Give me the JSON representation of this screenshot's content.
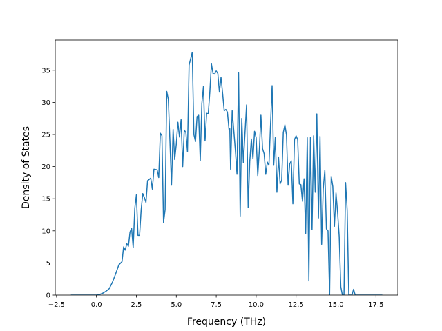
{
  "chart_data": {
    "type": "line",
    "xlabel": "Frequency (THz)",
    "ylabel": "Density of States",
    "xlim": [
      -2.58,
      18.87
    ],
    "ylim": [
      0,
      39.7
    ],
    "xticks": [
      {
        "value": -2.5,
        "label": "−2.5"
      },
      {
        "value": 0,
        "label": "0.0"
      },
      2.5,
      {
        "value": 5,
        "label": "5.0"
      },
      7.5,
      {
        "value": 10,
        "label": "10.0"
      },
      12.5,
      {
        "value": 15,
        "label": "15.0"
      },
      17.5
    ],
    "yticks": [
      0,
      5,
      10,
      15,
      20,
      25,
      30,
      35
    ],
    "grid": false,
    "series": [
      {
        "color": "#1f77b4",
        "x": [
          -1.6,
          0,
          0.2,
          0.4,
          0.6,
          0.8,
          1.0,
          1.2,
          1.4,
          1.6,
          1.7,
          1.8,
          1.9,
          2.0,
          2.1,
          2.2,
          2.3,
          2.4,
          2.5,
          2.6,
          2.7,
          2.8,
          2.9,
          3.0,
          3.1,
          3.2,
          3.4,
          3.5,
          3.6,
          3.8,
          3.9,
          4.0,
          4.1,
          4.2,
          4.3,
          4.4,
          4.5,
          4.6,
          4.7,
          4.8,
          4.9,
          5.0,
          5.1,
          5.2,
          5.3,
          5.4,
          5.5,
          5.6,
          5.7,
          5.8,
          6.0,
          6.1,
          6.2,
          6.3,
          6.4,
          6.5,
          6.6,
          6.7,
          6.8,
          6.9,
          7.0,
          7.1,
          7.2,
          7.3,
          7.4,
          7.5,
          7.6,
          7.7,
          7.8,
          7.9,
          8.0,
          8.1,
          8.2,
          8.3,
          8.35,
          8.4,
          8.5,
          8.6,
          8.7,
          8.8,
          8.9,
          9.0,
          9.1,
          9.2,
          9.3,
          9.4,
          9.5,
          9.6,
          9.7,
          9.8,
          9.9,
          10.0,
          10.1,
          10.2,
          10.3,
          10.4,
          10.5,
          10.6,
          10.7,
          10.8,
          10.9,
          11.0,
          11.1,
          11.2,
          11.3,
          11.4,
          11.5,
          11.6,
          11.7,
          11.8,
          11.9,
          12.0,
          12.1,
          12.2,
          12.3,
          12.4,
          12.5,
          12.6,
          12.7,
          12.8,
          12.9,
          13.0,
          13.1,
          13.2,
          13.3,
          13.4,
          13.5,
          13.6,
          13.7,
          13.8,
          13.9,
          14.0,
          14.1,
          14.2,
          14.3,
          14.4,
          14.5,
          14.6,
          14.7,
          14.8,
          14.9,
          15.0,
          15.1,
          15.2,
          15.3,
          15.4,
          15.5,
          15.6,
          15.7,
          15.8,
          16.0,
          16.1,
          16.2,
          17.9
        ],
        "values": [
          0,
          0,
          0.1,
          0.3,
          0.6,
          1.0,
          2.0,
          3.3,
          4.7,
          5.2,
          7.5,
          7.0,
          8.0,
          7.6,
          9.8,
          10.4,
          7.4,
          13.5,
          15.6,
          9.3,
          9.3,
          13.3,
          15.8,
          15.2,
          14.4,
          17.8,
          18.2,
          16.5,
          19.6,
          19.5,
          18.3,
          25.2,
          24.8,
          11.3,
          13.3,
          31.7,
          30.5,
          24,
          17.1,
          25.8,
          21.1,
          23.5,
          26.9,
          24.6,
          27.3,
          20,
          25.7,
          25.3,
          22.3,
          35.8,
          37.8,
          25,
          23.9,
          27.8,
          28,
          20.9,
          29.8,
          32.5,
          24,
          28.3,
          28.2,
          31.6,
          36,
          34.5,
          34.4,
          34.9,
          34.5,
          31.6,
          33.9,
          31.4,
          28.7,
          28.9,
          28.5,
          25.8,
          25.9,
          19.6,
          28.7,
          25.6,
          22.5,
          18.8,
          34.6,
          12.3,
          27.5,
          20.6,
          25.2,
          29.6,
          13.6,
          20.8,
          24.3,
          21.2,
          25.5,
          24.5,
          18.6,
          22.6,
          28,
          22.8,
          22.0,
          18.8,
          20.7,
          20.2,
          26.5,
          32.6,
          20.2,
          24.6,
          16,
          21.5,
          17.3,
          17.9,
          25.3,
          26.5,
          24.9,
          17.1,
          20.4,
          20.9,
          14.2,
          24.2,
          24.8,
          24.2,
          17.3,
          17.2,
          14.6,
          18.1,
          9.6,
          24.5,
          2.2,
          24.6,
          10.2,
          24.8,
          16,
          28.2,
          12,
          24.7,
          7.9,
          16.5,
          19.4,
          10.3,
          10,
          0,
          18.5,
          16.9,
          10.7,
          15.9,
          12.9,
          9.1,
          1.3,
          0,
          0,
          17.5,
          13.2,
          0,
          0,
          0.9,
          0,
          0
        ]
      }
    ]
  }
}
